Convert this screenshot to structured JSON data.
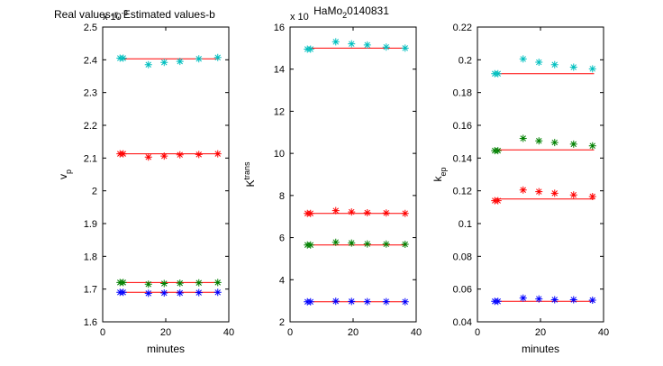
{
  "figure": {
    "main_title": "HaMo_2 0140831",
    "main_title_parts": {
      "before": "HaMo",
      "sub": "2",
      "after": "0140831"
    },
    "legend_text": "Real values-r, Estimated values-b"
  },
  "chart_data": [
    {
      "type": "scatter",
      "xlabel": "minutes",
      "ylabel": "v_p",
      "ylabel_parts": {
        "base": "v",
        "sub": "p"
      },
      "exponent_label": "x 10",
      "exponent_power": "-3",
      "xlim": [
        0,
        40
      ],
      "ylim": [
        1.6,
        2.5
      ],
      "xticks": [
        0,
        20,
        40
      ],
      "yticks": [
        1.6,
        1.7,
        1.8,
        1.9,
        2.0,
        2.1,
        2.2,
        2.3,
        2.4,
        2.5
      ],
      "ytick_labels": [
        "1.6",
        "1.7",
        "1.8",
        "1.9",
        "2",
        "2.1",
        "2.2",
        "2.3",
        "2.4",
        "2.5"
      ],
      "grid": false,
      "reference_lines": [
        {
          "color": "#ff0000",
          "x": [
            6,
            37
          ],
          "y": 2.403
        },
        {
          "color": "#ff0000",
          "x": [
            6,
            37
          ],
          "y": 2.113
        },
        {
          "color": "#ff0000",
          "x": [
            6,
            37
          ],
          "y": 1.72
        },
        {
          "color": "#ff0000",
          "x": [
            6,
            37
          ],
          "y": 1.69
        }
      ],
      "series": [
        {
          "color": "#00bfbf",
          "x": [
            5.5,
            6.5,
            14.5,
            19.5,
            24.5,
            30.5,
            36.5
          ],
          "y": [
            2.405,
            2.405,
            2.385,
            2.392,
            2.395,
            2.403,
            2.407
          ]
        },
        {
          "color": "#ff0000",
          "x": [
            5.5,
            6.5,
            14.5,
            19.5,
            24.5,
            30.5,
            36.5
          ],
          "y": [
            2.113,
            2.113,
            2.103,
            2.106,
            2.11,
            2.111,
            2.113
          ]
        },
        {
          "color": "#008000",
          "x": [
            5.5,
            6.5,
            14.5,
            19.5,
            24.5,
            30.5,
            36.5
          ],
          "y": [
            1.72,
            1.72,
            1.715,
            1.717,
            1.718,
            1.719,
            1.72
          ]
        },
        {
          "color": "#0000ff",
          "x": [
            5.5,
            6.5,
            14.5,
            19.5,
            24.5,
            30.5,
            36.5
          ],
          "y": [
            1.69,
            1.69,
            1.687,
            1.688,
            1.688,
            1.689,
            1.69
          ]
        }
      ]
    },
    {
      "type": "scatter",
      "xlabel": "",
      "ylabel": "K^trans",
      "ylabel_parts": {
        "base": "K",
        "sup": "trans"
      },
      "exponent_label": "x 10",
      "exponent_power": "",
      "xlim": [
        0,
        40
      ],
      "ylim": [
        2,
        16
      ],
      "xticks": [
        0,
        20,
        40
      ],
      "yticks": [
        2,
        4,
        6,
        8,
        10,
        12,
        14,
        16
      ],
      "ytick_labels": [
        "2",
        "4",
        "6",
        "8",
        "10",
        "12",
        "14",
        "16"
      ],
      "grid": false,
      "reference_lines": [
        {
          "color": "#ff0000",
          "x": [
            6,
            37
          ],
          "y": 15.0
        },
        {
          "color": "#ff0000",
          "x": [
            6,
            37
          ],
          "y": 7.15
        },
        {
          "color": "#ff0000",
          "x": [
            6,
            37
          ],
          "y": 5.65
        },
        {
          "color": "#ff0000",
          "x": [
            6,
            37
          ],
          "y": 2.95
        }
      ],
      "series": [
        {
          "color": "#00bfbf",
          "x": [
            5.5,
            6.5,
            14.5,
            19.5,
            24.5,
            30.5,
            36.5
          ],
          "y": [
            14.95,
            14.95,
            15.3,
            15.2,
            15.15,
            15.05,
            15.0
          ]
        },
        {
          "color": "#ff0000",
          "x": [
            5.5,
            6.5,
            14.5,
            19.5,
            24.5,
            30.5,
            36.5
          ],
          "y": [
            7.15,
            7.15,
            7.28,
            7.22,
            7.18,
            7.17,
            7.15
          ]
        },
        {
          "color": "#008000",
          "x": [
            5.5,
            6.5,
            14.5,
            19.5,
            24.5,
            30.5,
            36.5
          ],
          "y": [
            5.65,
            5.65,
            5.78,
            5.74,
            5.7,
            5.69,
            5.68
          ]
        },
        {
          "color": "#0000ff",
          "x": [
            5.5,
            6.5,
            14.5,
            19.5,
            24.5,
            30.5,
            36.5
          ],
          "y": [
            2.95,
            2.95,
            2.98,
            2.97,
            2.96,
            2.96,
            2.95
          ]
        }
      ]
    },
    {
      "type": "scatter",
      "xlabel": "minutes",
      "ylabel": "k_ep",
      "ylabel_parts": {
        "base": "k",
        "sub": "ep"
      },
      "exponent_label": "",
      "exponent_power": "",
      "xlim": [
        0,
        40
      ],
      "ylim": [
        0.04,
        0.22
      ],
      "xticks": [
        0,
        20,
        40
      ],
      "yticks": [
        0.04,
        0.06,
        0.08,
        0.1,
        0.12,
        0.14,
        0.16,
        0.18,
        0.2,
        0.22
      ],
      "ytick_labels": [
        "0.04",
        "0.06",
        "0.08",
        "0.1",
        "0.12",
        "0.14",
        "0.16",
        "0.18",
        "0.2",
        "0.22"
      ],
      "grid": false,
      "reference_lines": [
        {
          "color": "#ff0000",
          "x": [
            6,
            37
          ],
          "y": 0.1915
        },
        {
          "color": "#ff0000",
          "x": [
            6,
            37
          ],
          "y": 0.145
        },
        {
          "color": "#ff0000",
          "x": [
            6,
            37
          ],
          "y": 0.115
        },
        {
          "color": "#ff0000",
          "x": [
            6,
            37
          ],
          "y": 0.0525
        }
      ],
      "series": [
        {
          "color": "#00bfbf",
          "x": [
            5.5,
            6.5,
            14.5,
            19.5,
            24.5,
            30.5,
            36.5
          ],
          "y": [
            0.1915,
            0.1915,
            0.2005,
            0.1985,
            0.197,
            0.1955,
            0.1945
          ]
        },
        {
          "color": "#008000",
          "x": [
            5.5,
            6.5,
            14.5,
            19.5,
            24.5,
            30.5,
            36.5
          ],
          "y": [
            0.1445,
            0.1445,
            0.152,
            0.1505,
            0.1495,
            0.1485,
            0.1475
          ]
        },
        {
          "color": "#ff0000",
          "x": [
            5.5,
            6.5,
            14.5,
            19.5,
            24.5,
            30.5,
            36.5
          ],
          "y": [
            0.114,
            0.114,
            0.1205,
            0.1195,
            0.1185,
            0.1175,
            0.1165
          ]
        },
        {
          "color": "#0000ff",
          "x": [
            5.5,
            6.5,
            14.5,
            19.5,
            24.5,
            30.5,
            36.5
          ],
          "y": [
            0.0525,
            0.0525,
            0.0545,
            0.054,
            0.0535,
            0.0535,
            0.0532
          ]
        }
      ]
    }
  ]
}
